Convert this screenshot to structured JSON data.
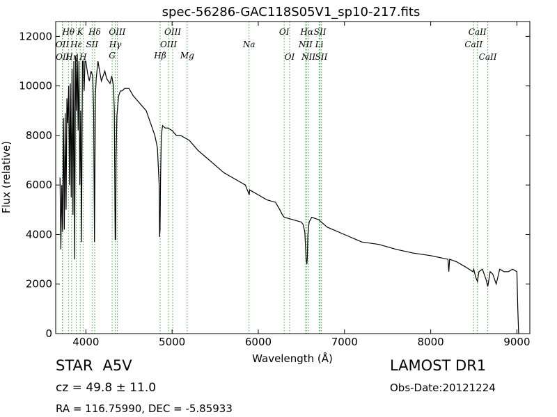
{
  "chart_data": {
    "type": "line",
    "title": "spec-56286-GAC118S05V1_sp10-217.fits",
    "xlabel": "Wavelength (Å)",
    "ylabel": "Flux (relative)",
    "xlim": [
      3650,
      9150
    ],
    "ylim": [
      0,
      12600
    ],
    "xticks": [
      4000,
      5000,
      6000,
      7000,
      8000,
      9000
    ],
    "yticks": [
      0,
      2000,
      4000,
      6000,
      8000,
      10000,
      12000
    ],
    "grid": false,
    "line_color": "#000000",
    "marker_color": "#33aa33",
    "series": [
      {
        "x": [
          3700,
          3710,
          3720,
          3730,
          3740,
          3750,
          3760,
          3770,
          3780,
          3790,
          3800,
          3810,
          3820,
          3830,
          3840,
          3850,
          3860,
          3870,
          3880,
          3890,
          3900,
          3910,
          3920,
          3930,
          3940,
          3950,
          3960,
          3970,
          3980,
          3990,
          4000,
          4020,
          4040,
          4060,
          4080,
          4090,
          4100,
          4110,
          4120,
          4140,
          4160,
          4180,
          4200,
          4220,
          4240,
          4260,
          4280,
          4300,
          4320,
          4330,
          4340,
          4345,
          4350,
          4360,
          4380,
          4400,
          4420,
          4450,
          4500,
          4550,
          4600,
          4650,
          4700,
          4750,
          4800,
          4830,
          4850,
          4855,
          4861,
          4866,
          4875,
          4890,
          4920,
          4950,
          5000,
          5050,
          5100,
          5150,
          5200,
          5300,
          5400,
          5500,
          5600,
          5700,
          5800,
          5850,
          5895,
          5900,
          6000,
          6100,
          6200,
          6250,
          6280,
          6300,
          6400,
          6500,
          6520,
          6540,
          6555,
          6563,
          6568,
          6575,
          6590,
          6620,
          6700,
          6800,
          7000,
          7200,
          7400,
          7600,
          7800,
          8000,
          8200,
          8210,
          8220,
          8300,
          8400,
          8490,
          8500,
          8520,
          8542,
          8560,
          8600,
          8640,
          8662,
          8690,
          8720,
          8760,
          8800,
          8850,
          8900,
          8950,
          9000,
          9010,
          9020
        ],
        "y": [
          6300,
          3400,
          6000,
          4100,
          8700,
          4200,
          8900,
          5000,
          9500,
          8500,
          10000,
          6000,
          10100,
          5500,
          10700,
          4800,
          11000,
          3000,
          11200,
          9000,
          11300,
          8200,
          11000,
          6000,
          9000,
          3700,
          11000,
          11000,
          9800,
          11000,
          11000,
          10500,
          10200,
          10600,
          10400,
          9000,
          3700,
          9600,
          10300,
          11000,
          10600,
          10200,
          10400,
          10600,
          10300,
          10200,
          10100,
          10400,
          10000,
          9000,
          3800,
          3800,
          7000,
          8800,
          9600,
          9800,
          9800,
          9900,
          9900,
          9600,
          9400,
          9200,
          9000,
          8500,
          8000,
          7500,
          6000,
          3900,
          4200,
          6200,
          8000,
          8400,
          8300,
          8300,
          8200,
          8000,
          8000,
          7900,
          7800,
          7400,
          7100,
          6800,
          6500,
          6300,
          6100,
          6000,
          5600,
          5800,
          5600,
          5400,
          5300,
          5000,
          4800,
          4700,
          4600,
          4500,
          4400,
          4100,
          3000,
          2800,
          3000,
          4000,
          4500,
          4700,
          4600,
          4300,
          4000,
          3700,
          3600,
          3400,
          3250,
          3150,
          3000,
          2500,
          3000,
          2900,
          2700,
          2500,
          2600,
          2300,
          2100,
          2500,
          2600,
          2200,
          1900,
          2500,
          2400,
          2000,
          2600,
          2500,
          2500,
          2600,
          2500,
          1000,
          0
        ]
      }
    ],
    "annotations": [
      {
        "x": 3727,
        "label": "OII",
        "row": 1
      },
      {
        "x": 3729,
        "label": "OII",
        "row": 2
      },
      {
        "x": 3798,
        "label": "Hθ",
        "row": 0
      },
      {
        "x": 3835,
        "label": "Hη",
        "row": 2
      },
      {
        "x": 3889,
        "label": "Hε",
        "row": 1
      },
      {
        "x": 3934,
        "label": "K",
        "row": 0
      },
      {
        "x": 3968,
        "label": "H",
        "row": 2
      },
      {
        "x": 4072,
        "label": "SII",
        "row": 1
      },
      {
        "x": 4102,
        "label": "Hδ",
        "row": 0
      },
      {
        "x": 4305,
        "label": "G",
        "row": 3
      },
      {
        "x": 4341,
        "label": "Hγ",
        "row": 1
      },
      {
        "x": 4364,
        "label": "OIII",
        "row": 0
      },
      {
        "x": 4861,
        "label": "Hβ",
        "row": 3
      },
      {
        "x": 4959,
        "label": "OIII",
        "row": 2
      },
      {
        "x": 5007,
        "label": "OIII",
        "row": 0
      },
      {
        "x": 5175,
        "label": "Mg",
        "row": 3
      },
      {
        "x": 5893,
        "label": "Na",
        "row": 2
      },
      {
        "x": 6300,
        "label": "OI",
        "row": 0
      },
      {
        "x": 6363,
        "label": "OI",
        "row": 3
      },
      {
        "x": 6548,
        "label": "NII",
        "row": 2
      },
      {
        "x": 6563,
        "label": "Hα",
        "row": 0
      },
      {
        "x": 6583,
        "label": "NII",
        "row": 3
      },
      {
        "x": 6707,
        "label": "Li",
        "row": 2
      },
      {
        "x": 6716,
        "label": "SII",
        "row": 0
      },
      {
        "x": 6731,
        "label": "SII",
        "row": 3
      },
      {
        "x": 8498,
        "label": "CaII",
        "row": 1
      },
      {
        "x": 8542,
        "label": "CaII",
        "row": 0
      },
      {
        "x": 8662,
        "label": "CaII",
        "row": 3
      }
    ]
  },
  "info": {
    "class_label": "STAR",
    "subclass_label": "A5V",
    "cz_text": "cz = 49.8 ± 11.0",
    "survey": "LAMOST DR1",
    "obs_date": "Obs-Date:20121224",
    "radec": "RA = 116.75990, DEC = -5.85933"
  }
}
